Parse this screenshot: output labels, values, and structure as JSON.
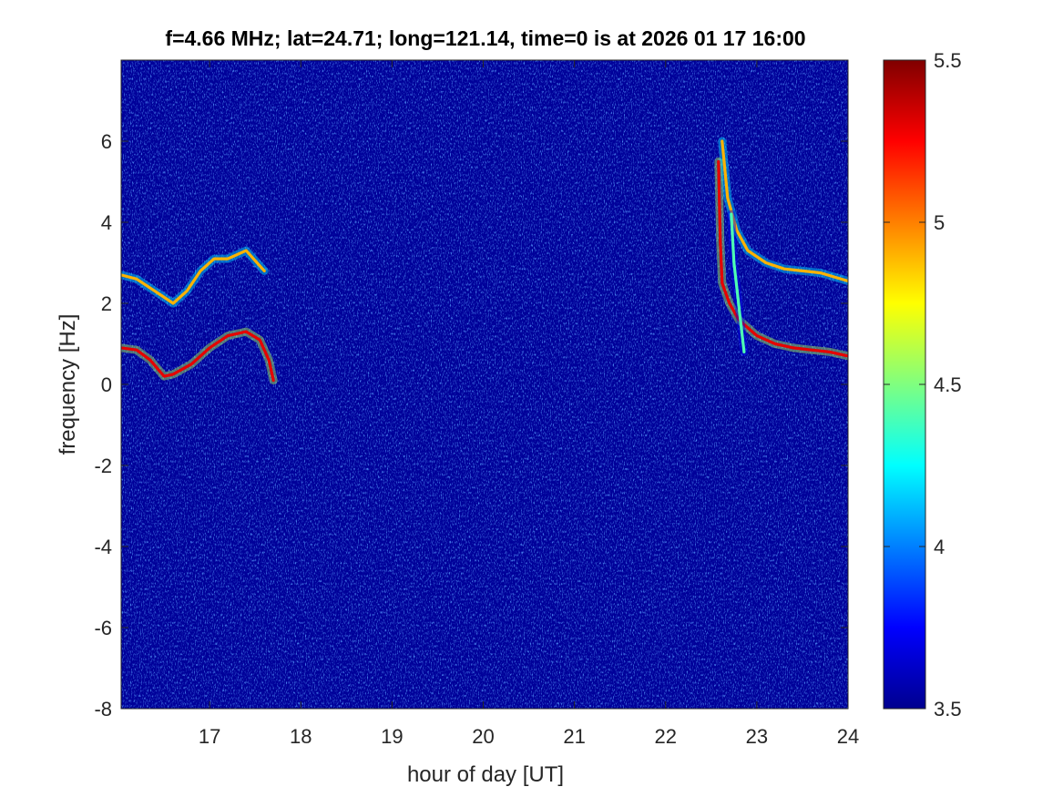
{
  "chart_data": {
    "type": "heatmap",
    "title": "f=4.66 MHz;  lat=24.71; long=121.14, time=0 is at 2026 01 17 16:00",
    "xlabel": "hour of day [UT]",
    "ylabel": "frequency [Hz]",
    "xlim": [
      16.03,
      24
    ],
    "ylim": [
      -8,
      8
    ],
    "x_ticks": [
      17,
      18,
      19,
      20,
      21,
      22,
      23,
      24
    ],
    "x_tick_labels": [
      "17",
      "18",
      "19",
      "20",
      "21",
      "22",
      "23",
      "24"
    ],
    "y_ticks": [
      -8,
      -6,
      -4,
      -2,
      0,
      2,
      4,
      6
    ],
    "y_tick_labels": [
      "-8",
      "-6",
      "-4",
      "-2",
      "0",
      "2",
      "4",
      "6"
    ],
    "colorbar": {
      "colormap": "jet",
      "clim": [
        3.5,
        5.5
      ],
      "ticks": [
        3.5,
        4,
        4.5,
        5,
        5.5
      ],
      "tick_labels": [
        "3.5",
        "4",
        "4.5",
        "5",
        "5.5"
      ]
    },
    "background_level": 3.55,
    "traces": [
      {
        "level": 5.3,
        "points": [
          [
            16.03,
            0.9
          ],
          [
            16.2,
            0.85
          ],
          [
            16.35,
            0.6
          ],
          [
            16.5,
            0.2
          ],
          [
            16.6,
            0.25
          ],
          [
            16.8,
            0.5
          ],
          [
            17.0,
            0.9
          ],
          [
            17.2,
            1.2
          ],
          [
            17.4,
            1.3
          ],
          [
            17.55,
            1.1
          ],
          [
            17.65,
            0.6
          ],
          [
            17.7,
            0.1
          ]
        ]
      },
      {
        "level": 4.9,
        "points": [
          [
            16.03,
            2.7
          ],
          [
            16.2,
            2.6
          ],
          [
            16.4,
            2.3
          ],
          [
            16.6,
            2.0
          ],
          [
            16.75,
            2.3
          ],
          [
            16.9,
            2.8
          ],
          [
            17.05,
            3.1
          ],
          [
            17.2,
            3.1
          ],
          [
            17.4,
            3.3
          ],
          [
            17.6,
            2.8
          ]
        ]
      },
      {
        "level": 5.3,
        "points": [
          [
            22.58,
            5.5
          ],
          [
            22.6,
            3.5
          ],
          [
            22.62,
            2.5
          ],
          [
            22.7,
            2.0
          ],
          [
            22.8,
            1.6
          ],
          [
            23.0,
            1.2
          ],
          [
            23.2,
            1.0
          ],
          [
            23.4,
            0.9
          ],
          [
            23.6,
            0.85
          ],
          [
            23.8,
            0.8
          ],
          [
            24.0,
            0.7
          ]
        ]
      },
      {
        "level": 4.9,
        "points": [
          [
            22.62,
            6.0
          ],
          [
            22.68,
            4.6
          ],
          [
            22.78,
            3.8
          ],
          [
            22.9,
            3.3
          ],
          [
            23.1,
            3.0
          ],
          [
            23.3,
            2.85
          ],
          [
            23.5,
            2.8
          ],
          [
            23.7,
            2.75
          ],
          [
            23.85,
            2.65
          ],
          [
            24.0,
            2.55
          ]
        ]
      },
      {
        "level": 4.4,
        "points": [
          [
            22.72,
            4.2
          ],
          [
            22.75,
            3.0
          ],
          [
            22.8,
            2.0
          ],
          [
            22.86,
            0.8
          ]
        ]
      }
    ]
  }
}
